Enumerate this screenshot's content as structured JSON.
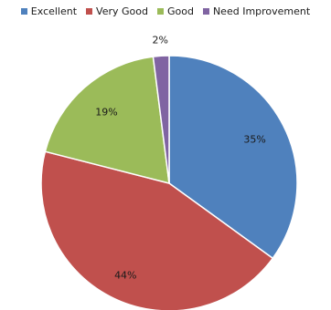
{
  "chart_data": {
    "type": "pie",
    "title": "",
    "legend_position": "top",
    "categories": [
      "Excellent",
      "Very Good",
      "Good",
      "Need Improvement"
    ],
    "values": [
      35,
      44,
      19,
      2
    ],
    "labels": [
      "35%",
      "44%",
      "19%",
      "2%"
    ],
    "colors": [
      "#4f81bd",
      "#c0504d",
      "#9bbb59",
      "#8064a2"
    ],
    "start_angle_deg": 0,
    "direction": "clockwise"
  }
}
